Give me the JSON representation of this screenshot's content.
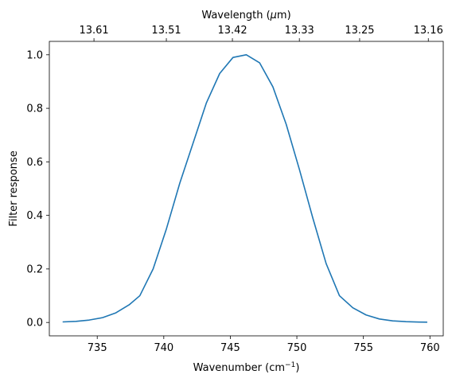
{
  "chart_data": {
    "type": "line",
    "xlabel_main": "Wavenumber (cm",
    "xlabel_sup": "−1",
    "xlabel_close": ")",
    "xlabel_top_main": "Wavelength (",
    "xlabel_top_mu": "μ",
    "xlabel_top_rest": "m)",
    "ylabel": "Filter response",
    "xlim": [
      731.4,
      761.0
    ],
    "ylim": [
      -0.05,
      1.05
    ],
    "xticks": [
      735,
      740,
      745,
      750,
      755,
      760
    ],
    "xtick_labels": [
      "735",
      "740",
      "745",
      "750",
      "755",
      "760"
    ],
    "yticks": [
      0.0,
      0.2,
      0.4,
      0.6,
      0.8,
      1.0
    ],
    "ytick_labels": [
      "0.0",
      "0.2",
      "0.4",
      "0.6",
      "0.8",
      "1.0"
    ],
    "top_ticks_wavelength": [
      13.61,
      13.51,
      13.42,
      13.33,
      13.25,
      13.16
    ],
    "top_tick_labels": [
      "13.61",
      "13.51",
      "13.42",
      "13.33",
      "13.25",
      "13.16"
    ],
    "series": [
      {
        "color": "#1f77b4",
        "x": [
          732.4,
          733.4,
          734.4,
          735.4,
          736.4,
          737.4,
          738.2,
          739.2,
          740.2,
          741.2,
          742.2,
          743.2,
          744.2,
          745.2,
          746.2,
          747.2,
          748.2,
          749.2,
          750.2,
          751.2,
          752.2,
          753.2,
          754.2,
          755.2,
          756.2,
          757.2,
          758.2,
          759.2,
          759.8
        ],
        "y": [
          0.002,
          0.004,
          0.009,
          0.018,
          0.036,
          0.066,
          0.1,
          0.2,
          0.35,
          0.52,
          0.67,
          0.82,
          0.93,
          0.99,
          1.0,
          0.97,
          0.88,
          0.74,
          0.57,
          0.39,
          0.22,
          0.1,
          0.055,
          0.028,
          0.013,
          0.006,
          0.003,
          0.0015,
          0.001
        ]
      }
    ]
  }
}
